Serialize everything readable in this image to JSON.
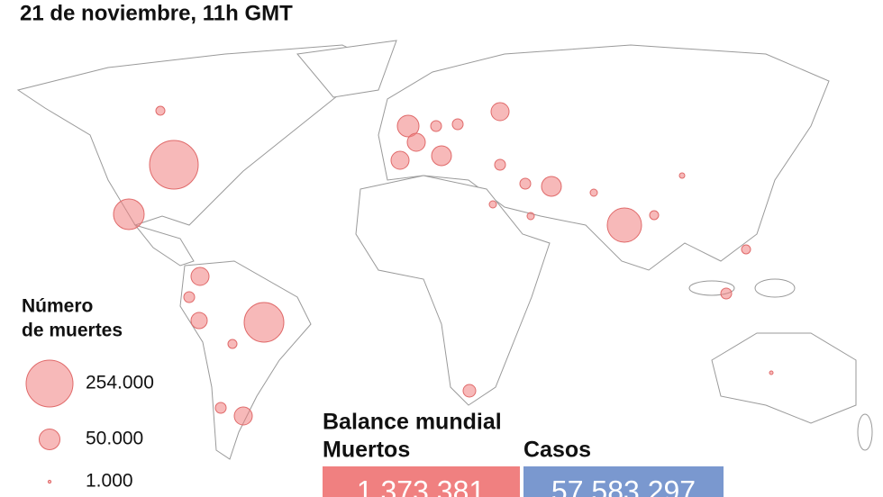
{
  "header": {
    "title": "21 de noviembre, 11h GMT"
  },
  "legend": {
    "title_line1": "Número",
    "title_line2": "de muertes",
    "sizes": [
      {
        "value": 254000,
        "label": "254.000"
      },
      {
        "value": 50000,
        "label": "50.000"
      },
      {
        "value": 1000,
        "label": "1.000"
      }
    ]
  },
  "summary": {
    "title": "Balance mundial",
    "deaths_label": "Muertos",
    "deaths": "1.373.381",
    "cases_label": "Casos",
    "cases": "57.583.297"
  }
}
